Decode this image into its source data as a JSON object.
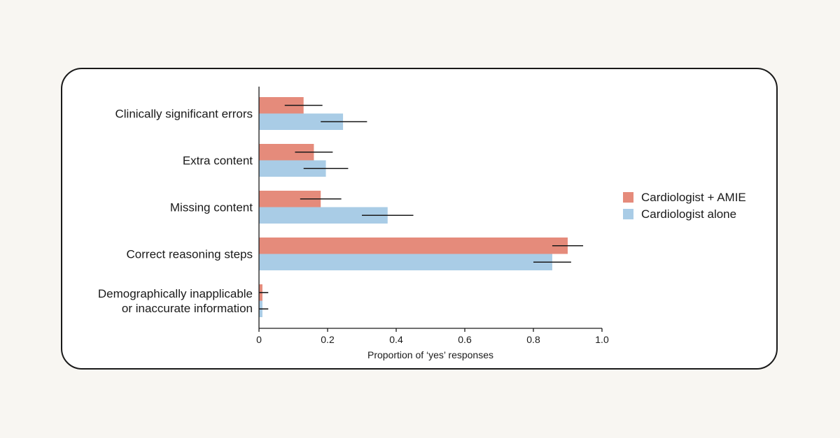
{
  "chart_data": {
    "type": "bar",
    "orientation": "horizontal",
    "categories": [
      [
        "Clinically significant errors"
      ],
      [
        "Extra content"
      ],
      [
        "Missing content"
      ],
      [
        "Correct reasoning steps"
      ],
      [
        "Demographically inapplicable",
        "or inaccurate information"
      ]
    ],
    "series": [
      {
        "name": "Cardiologist + AMIE",
        "color": "#e58b7b",
        "values": [
          0.13,
          0.16,
          0.18,
          0.9,
          0.01
        ],
        "error_low": [
          0.075,
          0.105,
          0.12,
          0.855,
          0.0
        ],
        "error_high": [
          0.185,
          0.215,
          0.24,
          0.945,
          0.027
        ]
      },
      {
        "name": "Cardiologist alone",
        "color": "#a9cce6",
        "values": [
          0.245,
          0.195,
          0.375,
          0.855,
          0.01
        ],
        "error_low": [
          0.18,
          0.13,
          0.3,
          0.8,
          0.0
        ],
        "error_high": [
          0.315,
          0.26,
          0.45,
          0.91,
          0.027
        ]
      }
    ],
    "xlim": [
      0,
      1.0
    ],
    "xticks": [
      0,
      0.2,
      0.4,
      0.6,
      0.8,
      1.0
    ],
    "xtick_labels": [
      "0",
      "0.2",
      "0.4",
      "0.6",
      "0.8",
      "1.0"
    ],
    "xlabel": "Proportion of ‘yes’ responses",
    "ylabel": "",
    "title": "",
    "legend_position": "right",
    "grid": false
  }
}
